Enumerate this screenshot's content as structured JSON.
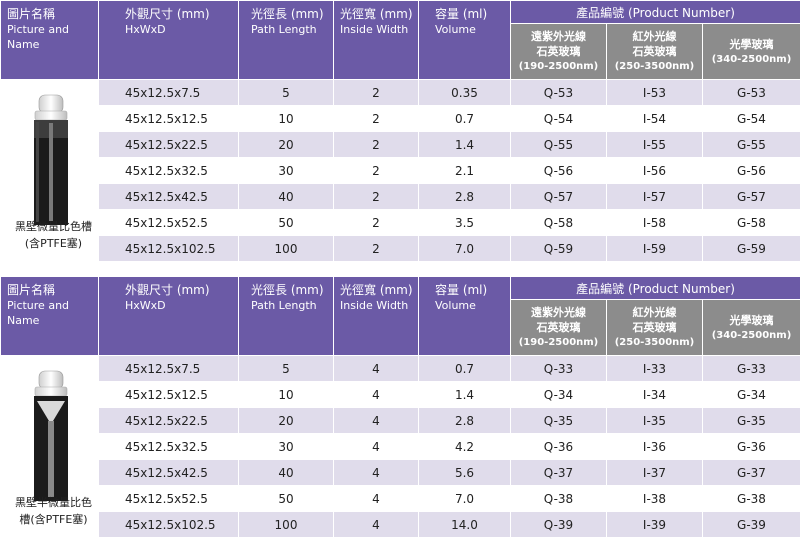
{
  "headers": {
    "picture": {
      "zh": "圖片名稱",
      "en1": "Picture and",
      "en2": "Name"
    },
    "dims": {
      "zh": "外觀尺寸 (mm)",
      "en": "HxWxD"
    },
    "path": {
      "zh": "光徑長 (mm)",
      "en": "Path Length"
    },
    "width": {
      "zh": "光徑寬 (mm)",
      "en": "Inside Width"
    },
    "volume": {
      "zh": "容量 (ml)",
      "en": "Volume"
    },
    "product": "產品編號 (Product Number)",
    "quartz": {
      "l1": "遠紫外光線",
      "l2": "石英玻璃",
      "rng": "(190-2500nm)"
    },
    "ir": {
      "l1": "紅外光線",
      "l2": "石英玻璃",
      "rng": "(250-3500nm)"
    },
    "optical": {
      "l1": "光學玻璃",
      "rng": "(340-2500nm)"
    }
  },
  "table1": {
    "name_l1": "黑壁微量比色槽",
    "name_l2": "(含PTFE塞)",
    "rows": [
      {
        "dims": "45x12.5x7.5",
        "path": "5",
        "width": "2",
        "volume": "0.35",
        "q": "Q-53",
        "i": "I-53",
        "g": "G-53"
      },
      {
        "dims": "45x12.5x12.5",
        "path": "10",
        "width": "2",
        "volume": "0.7",
        "q": "Q-54",
        "i": "I-54",
        "g": "G-54"
      },
      {
        "dims": "45x12.5x22.5",
        "path": "20",
        "width": "2",
        "volume": "1.4",
        "q": "Q-55",
        "i": "I-55",
        "g": "G-55"
      },
      {
        "dims": "45x12.5x32.5",
        "path": "30",
        "width": "2",
        "volume": "2.1",
        "q": "Q-56",
        "i": "I-56",
        "g": "G-56"
      },
      {
        "dims": "45x12.5x42.5",
        "path": "40",
        "width": "2",
        "volume": "2.8",
        "q": "Q-57",
        "i": "I-57",
        "g": "G-57"
      },
      {
        "dims": "45x12.5x52.5",
        "path": "50",
        "width": "2",
        "volume": "3.5",
        "q": "Q-58",
        "i": "I-58",
        "g": "G-58"
      },
      {
        "dims": "45x12.5x102.5",
        "path": "100",
        "width": "2",
        "volume": "7.0",
        "q": "Q-59",
        "i": "I-59",
        "g": "G-59"
      }
    ]
  },
  "table2": {
    "name_l1": "黑壁半微量比色",
    "name_l2": "槽(含PTFE塞)",
    "rows": [
      {
        "dims": "45x12.5x7.5",
        "path": "5",
        "width": "4",
        "volume": "0.7",
        "q": "Q-33",
        "i": "I-33",
        "g": "G-33"
      },
      {
        "dims": "45x12.5x12.5",
        "path": "10",
        "width": "4",
        "volume": "1.4",
        "q": "Q-34",
        "i": "I-34",
        "g": "G-34"
      },
      {
        "dims": "45x12.5x22.5",
        "path": "20",
        "width": "4",
        "volume": "2.8",
        "q": "Q-35",
        "i": "I-35",
        "g": "G-35"
      },
      {
        "dims": "45x12.5x32.5",
        "path": "30",
        "width": "4",
        "volume": "4.2",
        "q": "Q-36",
        "i": "I-36",
        "g": "G-36"
      },
      {
        "dims": "45x12.5x42.5",
        "path": "40",
        "width": "4",
        "volume": "5.6",
        "q": "Q-37",
        "i": "I-37",
        "g": "G-37"
      },
      {
        "dims": "45x12.5x52.5",
        "path": "50",
        "width": "4",
        "volume": "7.0",
        "q": "Q-38",
        "i": "I-38",
        "g": "G-38"
      },
      {
        "dims": "45x12.5x102.5",
        "path": "100",
        "width": "4",
        "volume": "14.0",
        "q": "Q-39",
        "i": "I-39",
        "g": "G-39"
      }
    ]
  }
}
